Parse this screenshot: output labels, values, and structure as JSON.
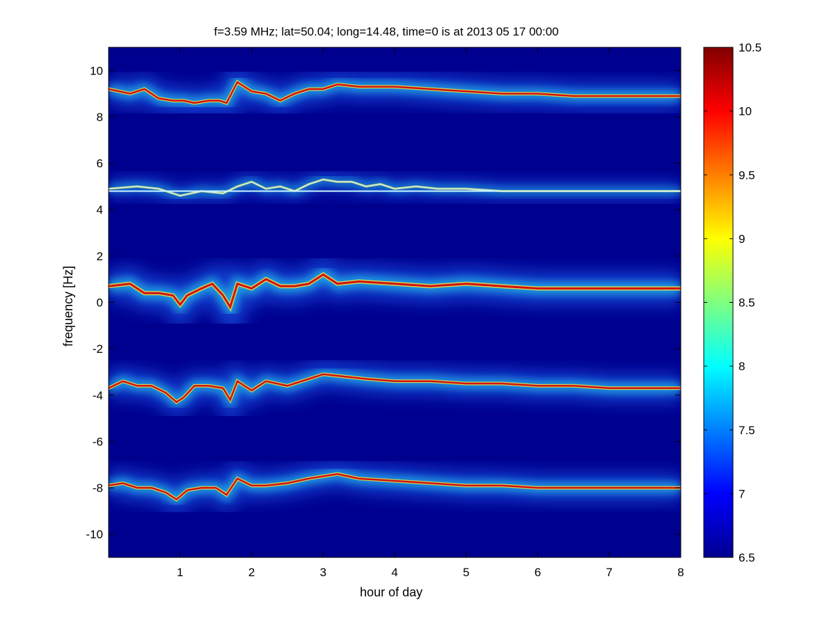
{
  "chart_data": {
    "type": "heatmap",
    "title": "f=3.59 MHz;  lat=50.04; long=14.48, time=0 is at 2013 05 17 00:00",
    "xlabel": "hour of day",
    "ylabel": "frequency [Hz]",
    "xlim": [
      0,
      8
    ],
    "ylim": [
      -11,
      11
    ],
    "x_ticks": [
      "1",
      "2",
      "3",
      "4",
      "5",
      "6",
      "7",
      "8"
    ],
    "y_ticks": [
      "-10",
      "-8",
      "-6",
      "-4",
      "-2",
      "0",
      "2",
      "4",
      "6",
      "8",
      "10"
    ],
    "colorbar": {
      "min": 6.5,
      "max": 10.5,
      "ticks": [
        "6.5",
        "7",
        "7.5",
        "8",
        "8.5",
        "9",
        "9.5",
        "10",
        "10.5"
      ],
      "colormap": "jet",
      "background_color": "#00008f"
    },
    "grid": false,
    "traces": [
      {
        "x": [
          0,
          0.3,
          0.5,
          0.7,
          0.9,
          1.05,
          1.2,
          1.4,
          1.55,
          1.65,
          1.8,
          2.0,
          2.2,
          2.4,
          2.6,
          2.8,
          3.0,
          3.2,
          3.5,
          4.0,
          4.5,
          5.0,
          5.5,
          6.0,
          6.5,
          7.0,
          7.5,
          8.0
        ],
        "y": [
          9.2,
          9.0,
          9.2,
          8.8,
          8.7,
          8.7,
          8.6,
          8.7,
          8.7,
          8.6,
          9.5,
          9.1,
          9.0,
          8.7,
          9.0,
          9.2,
          9.2,
          9.4,
          9.3,
          9.3,
          9.2,
          9.1,
          9.0,
          9.0,
          8.9,
          8.9,
          8.9,
          8.9
        ],
        "width": 2.5
      },
      {
        "x": [
          0,
          0.3,
          0.5,
          0.7,
          0.9,
          1.0,
          1.1,
          1.3,
          1.45,
          1.6,
          1.7,
          1.8,
          2.0,
          2.2,
          2.4,
          2.6,
          2.8,
          3.0,
          3.2,
          3.5,
          4.0,
          4.5,
          5.0,
          5.5,
          6.0,
          6.5,
          7.0,
          7.5,
          8.0
        ],
        "y": [
          0.7,
          0.8,
          0.4,
          0.4,
          0.3,
          -0.1,
          0.3,
          0.6,
          0.8,
          0.3,
          -0.2,
          0.8,
          0.6,
          1.0,
          0.7,
          0.7,
          0.8,
          1.2,
          0.8,
          0.9,
          0.8,
          0.7,
          0.8,
          0.7,
          0.6,
          0.6,
          0.6,
          0.6,
          0.6
        ],
        "width": 3
      },
      {
        "x": [
          0,
          0.2,
          0.4,
          0.6,
          0.8,
          0.95,
          1.05,
          1.2,
          1.4,
          1.6,
          1.7,
          1.8,
          2.0,
          2.2,
          2.5,
          2.8,
          3.0,
          3.3,
          3.6,
          4.0,
          4.5,
          5.0,
          5.5,
          6.0,
          6.5,
          7.0,
          7.5,
          8.0
        ],
        "y": [
          -3.7,
          -3.4,
          -3.6,
          -3.6,
          -3.9,
          -4.3,
          -4.1,
          -3.6,
          -3.6,
          -3.7,
          -4.2,
          -3.4,
          -3.8,
          -3.4,
          -3.6,
          -3.3,
          -3.1,
          -3.2,
          -3.3,
          -3.4,
          -3.4,
          -3.5,
          -3.5,
          -3.6,
          -3.6,
          -3.7,
          -3.7,
          -3.7
        ],
        "width": 2.5
      },
      {
        "x": [
          0,
          0.2,
          0.4,
          0.6,
          0.8,
          0.95,
          1.1,
          1.3,
          1.5,
          1.65,
          1.8,
          2.0,
          2.2,
          2.5,
          2.8,
          3.0,
          3.2,
          3.5,
          4.0,
          4.5,
          5.0,
          5.5,
          6.0,
          6.5,
          7.0,
          7.5,
          8.0
        ],
        "y": [
          -7.9,
          -7.8,
          -8.0,
          -8.0,
          -8.2,
          -8.5,
          -8.1,
          -8.0,
          -8.0,
          -8.3,
          -7.6,
          -7.9,
          -7.9,
          -7.8,
          -7.6,
          -7.5,
          -7.4,
          -7.6,
          -7.7,
          -7.8,
          -7.9,
          -7.9,
          -8.0,
          -8.0,
          -8.0,
          -8.0,
          -8.0
        ],
        "width": 2.5
      },
      {
        "x": [
          0,
          0.4,
          0.7,
          0.9,
          1.0,
          1.3,
          1.6,
          1.8,
          2.0,
          2.2,
          2.4,
          2.6,
          2.8,
          3.0,
          3.2,
          3.4,
          3.6,
          3.8,
          4.0,
          4.3,
          4.6,
          5.0,
          5.5,
          6.0,
          7.0,
          8.0
        ],
        "y": [
          4.9,
          5.0,
          4.9,
          4.7,
          4.6,
          4.8,
          4.7,
          5.0,
          5.2,
          4.9,
          5.0,
          4.8,
          5.1,
          5.3,
          5.2,
          5.2,
          5.0,
          5.1,
          4.9,
          5.0,
          4.9,
          4.9,
          4.8,
          4.8,
          4.8,
          4.8
        ],
        "width": 1.5
      }
    ],
    "reference_line_y": 4.8
  }
}
